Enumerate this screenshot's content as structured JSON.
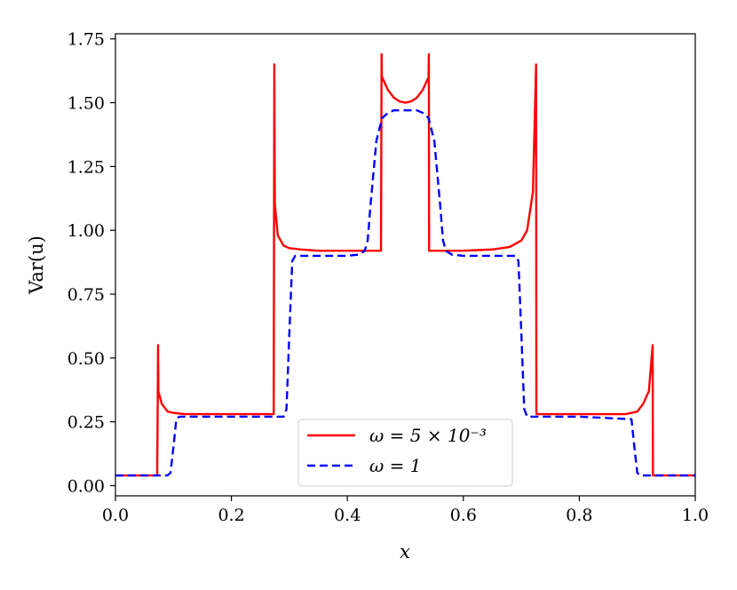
{
  "chart_data": {
    "type": "line",
    "xlabel": "x",
    "ylabel": "Var(u)",
    "xlim": [
      0.0,
      1.0
    ],
    "ylim": [
      -0.04,
      1.77
    ],
    "x_ticks": [
      "0.0",
      "0.2",
      "0.4",
      "0.6",
      "0.8",
      "1.0"
    ],
    "y_ticks": [
      "0.00",
      "0.25",
      "0.50",
      "0.75",
      "1.00",
      "1.25",
      "1.50",
      "1.75"
    ],
    "grid": false,
    "legend_position": "bottom-center",
    "series": [
      {
        "name": "ω = 5 × 10⁻³",
        "color": "#ff0000",
        "style": "solid",
        "x": [
          0.0,
          0.072,
          0.073,
          0.0735,
          0.074,
          0.08,
          0.09,
          0.1,
          0.12,
          0.15,
          0.2,
          0.25,
          0.273,
          0.274,
          0.2745,
          0.275,
          0.28,
          0.29,
          0.3,
          0.32,
          0.35,
          0.4,
          0.45,
          0.458,
          0.459,
          0.4595,
          0.46,
          0.47,
          0.48,
          0.49,
          0.5,
          0.51,
          0.52,
          0.53,
          0.54,
          0.5405,
          0.541,
          0.542,
          0.55,
          0.6,
          0.65,
          0.68,
          0.7,
          0.71,
          0.72,
          0.7255,
          0.726,
          0.727,
          0.75,
          0.8,
          0.85,
          0.88,
          0.9,
          0.91,
          0.92,
          0.9265,
          0.927,
          0.928,
          1.0
        ],
        "y": [
          0.04,
          0.04,
          0.35,
          0.55,
          0.37,
          0.32,
          0.29,
          0.285,
          0.28,
          0.28,
          0.28,
          0.28,
          0.28,
          1.65,
          1.3,
          1.1,
          0.98,
          0.94,
          0.93,
          0.925,
          0.92,
          0.92,
          0.92,
          0.92,
          1.69,
          1.6,
          1.6,
          1.55,
          1.52,
          1.505,
          1.5,
          1.505,
          1.52,
          1.55,
          1.6,
          1.69,
          0.92,
          0.92,
          0.92,
          0.92,
          0.925,
          0.935,
          0.96,
          1.0,
          1.15,
          1.65,
          0.28,
          0.28,
          0.28,
          0.28,
          0.28,
          0.28,
          0.29,
          0.32,
          0.37,
          0.55,
          0.04,
          0.04,
          0.04
        ]
      },
      {
        "name": "ω = 1",
        "color": "#0000ff",
        "style": "dashed",
        "x": [
          0.0,
          0.09,
          0.095,
          0.1,
          0.105,
          0.11,
          0.2,
          0.29,
          0.295,
          0.3,
          0.305,
          0.31,
          0.4,
          0.42,
          0.43,
          0.435,
          0.44,
          0.45,
          0.46,
          0.47,
          0.48,
          0.5,
          0.52,
          0.53,
          0.54,
          0.55,
          0.56,
          0.565,
          0.57,
          0.58,
          0.6,
          0.69,
          0.695,
          0.7,
          0.705,
          0.71,
          0.8,
          0.89,
          0.895,
          0.9,
          0.905,
          1.0
        ],
        "y": [
          0.04,
          0.04,
          0.05,
          0.15,
          0.26,
          0.27,
          0.27,
          0.27,
          0.3,
          0.6,
          0.88,
          0.9,
          0.9,
          0.905,
          0.92,
          0.96,
          1.1,
          1.35,
          1.44,
          1.46,
          1.47,
          1.47,
          1.47,
          1.46,
          1.44,
          1.35,
          1.1,
          0.96,
          0.92,
          0.905,
          0.9,
          0.9,
          0.88,
          0.6,
          0.3,
          0.27,
          0.27,
          0.26,
          0.15,
          0.05,
          0.04,
          0.04
        ]
      }
    ]
  }
}
